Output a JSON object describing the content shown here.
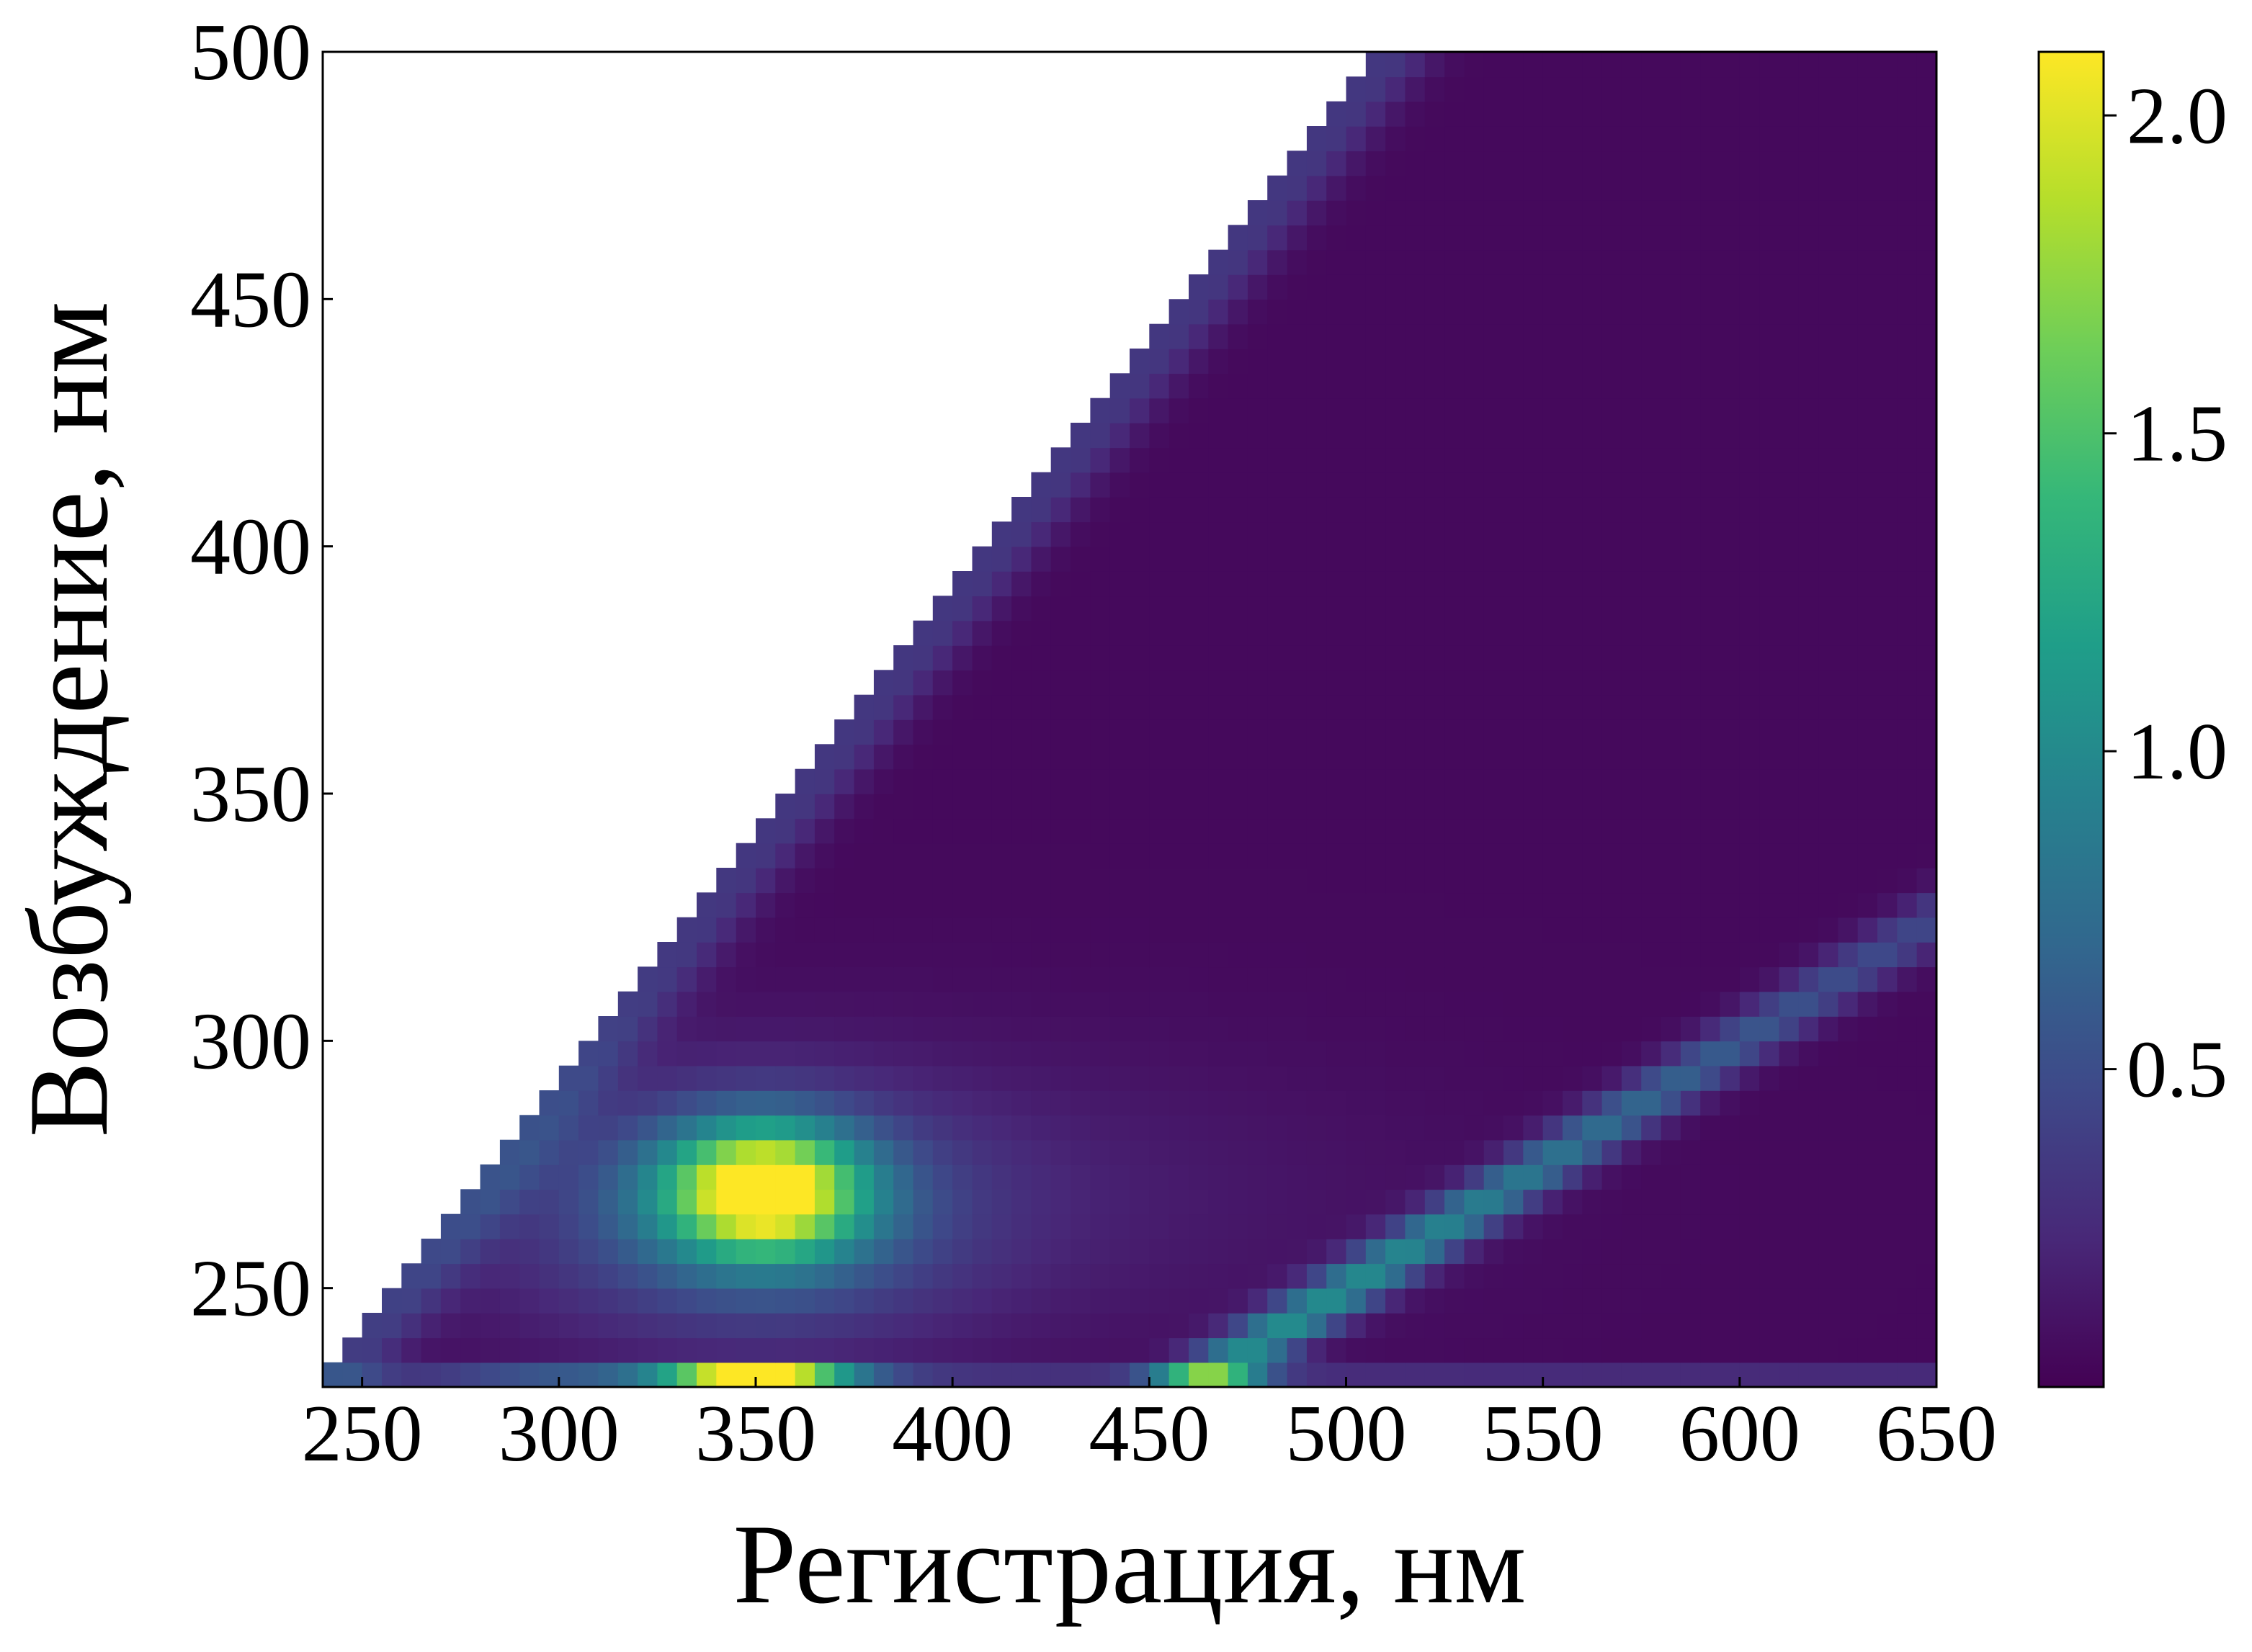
{
  "chart_data": {
    "type": "heatmap",
    "title": "",
    "xlabel": "Регистрация, нм",
    "ylabel": "Возбуждение, нм",
    "xlim": [
      240,
      650
    ],
    "ylim": [
      230,
      500
    ],
    "x_ticks": [
      "250",
      "300",
      "350",
      "400",
      "450",
      "500",
      "550",
      "600",
      "650"
    ],
    "y_ticks": [
      "250",
      "300",
      "350",
      "400",
      "450",
      "500"
    ],
    "colorbar": {
      "colormap": "viridis",
      "range": [
        0.0,
        2.1
      ],
      "ticks": [
        "0.5",
        "1.0",
        "1.5",
        "2.0"
      ],
      "colors": [
        "#440154",
        "#482878",
        "#3e4989",
        "#31688e",
        "#26828e",
        "#1f9e89",
        "#35b779",
        "#6ece58",
        "#b5de2b",
        "#fde725"
      ]
    },
    "grid": false,
    "grid_step": {
      "x": 5,
      "y": 5
    },
    "masked_region": "emission below excitation (x < y + 10) is blank",
    "features": [
      {
        "name": "first-order Rayleigh scatter line",
        "path": "emission = excitation + 10",
        "value": 0.35
      },
      {
        "name": "protein peak",
        "excitation": 270,
        "emission": 350,
        "value": 1.85
      },
      {
        "name": "second-order scatter line",
        "path": "emission = 2 × excitation",
        "value": 1.0
      },
      {
        "name": "bottom excitation band",
        "excitation": 232.5,
        "emission_peak": 350,
        "value": 2.1
      }
    ],
    "notes": "Excitation–emission fluorescence matrix; intensity grid is generated from the listed features in the page script."
  }
}
